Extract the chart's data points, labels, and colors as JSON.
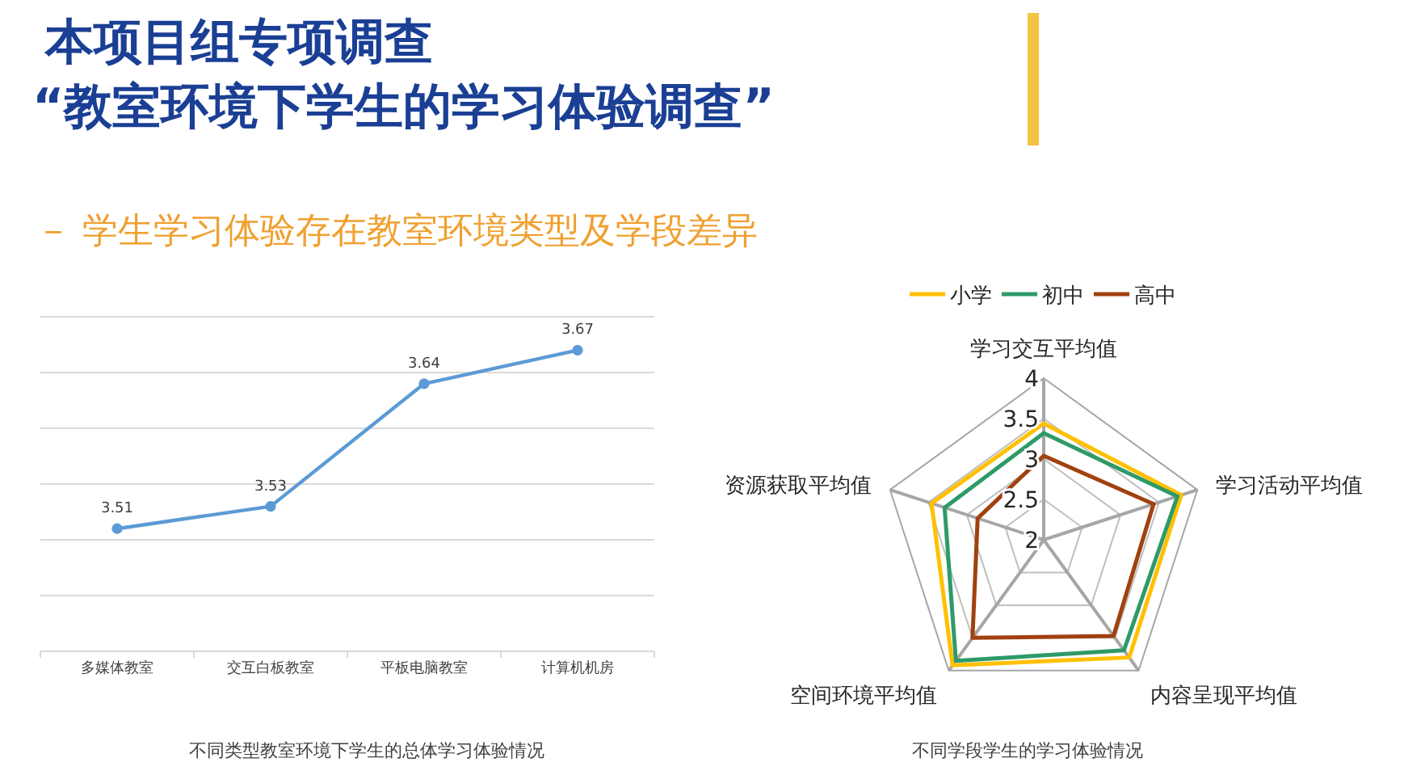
{
  "chart_data": [
    {
      "type": "line",
      "title": "本项目组专项调查\n“教室环境下学生的学习体验调查”",
      "subtitle": "－ 学生学习体验存在教室环境类型及学段差异",
      "categories": [
        "多媒体教室",
        "交互白板教室",
        "平板电脑教室",
        "计算机机房"
      ],
      "series": [
        {
          "color": "#5b9bd5",
          "values": [
            3.51,
            3.53,
            3.64,
            3.67
          ]
        }
      ],
      "ylim": [
        3.4,
        3.7
      ],
      "yticks": [
        {
          "value": 3.4,
          "label": null
        },
        {
          "value": 3.45,
          "label": null
        },
        {
          "value": 3.5,
          "label": null
        },
        {
          "value": 3.55,
          "label": null
        },
        {
          "value": 3.6,
          "label": null
        },
        {
          "value": 3.65,
          "label": null
        },
        {
          "value": 3.7,
          "label": null
        }
      ],
      "tick_labels": "x",
      "grid": "y",
      "marker": "circle",
      "data_labels": true,
      "annotations": [
        "不同类型教室环境下学生的总体学习体验情况"
      ]
    },
    {
      "type": "radar",
      "categories": [
        "学习交互平均值",
        "学习活动平均值",
        "内容呈现平均值",
        "空间环境平均值",
        "资源获取平均值"
      ],
      "series": [
        {
          "name": "小学",
          "color": "#ffc000",
          "values": [
            3.44,
            3.79,
            3.8,
            3.92,
            3.46
          ]
        },
        {
          "name": "初中",
          "color": "#2e9a68",
          "values": [
            3.32,
            3.74,
            3.69,
            3.85,
            3.29
          ]
        },
        {
          "name": "高中",
          "color": "#a0410f",
          "values": [
            3.04,
            3.43,
            3.47,
            3.5,
            2.86
          ]
        }
      ],
      "ylim": [
        2,
        4
      ],
      "yticks": [
        2,
        2.5,
        3,
        3.5,
        4
      ],
      "legend": "top",
      "annotations": [
        "不同学段学生的学习体验情况"
      ]
    }
  ]
}
